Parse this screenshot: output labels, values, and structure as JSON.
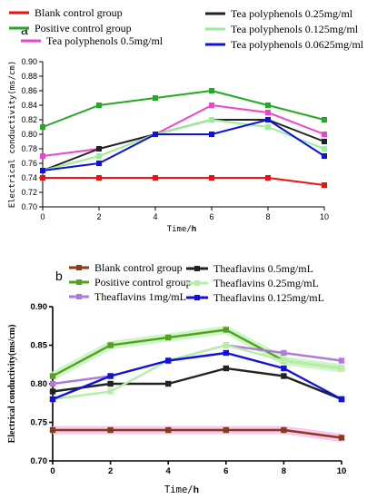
{
  "chart_data": [
    {
      "type": "line",
      "panel_label": "a",
      "xlabel_main": "Time/",
      "xlabel_unit": "h",
      "ylabel": "Electrical conductivity(ms/cm)",
      "x": [
        0,
        2,
        4,
        6,
        8,
        10
      ],
      "x_ticks": [
        "0",
        "2",
        "4",
        "6",
        "8",
        "10"
      ],
      "y_ticks": [
        "0.70",
        "0.72",
        "0.74",
        "0.76",
        "0.78",
        "0.80",
        "0.82",
        "0.84",
        "0.86",
        "0.88",
        "0.90"
      ],
      "ylim": [
        0.7,
        0.9
      ],
      "xlim": [
        0,
        10
      ],
      "grid": false,
      "legend_position": "top",
      "series": [
        {
          "name": "Blank control group",
          "color": "#ee1111",
          "values": [
            0.74,
            0.74,
            0.74,
            0.74,
            0.74,
            0.73
          ]
        },
        {
          "name": "Positive control group",
          "color": "#22aa22",
          "values": [
            0.81,
            0.84,
            0.85,
            0.86,
            0.84,
            0.82
          ]
        },
        {
          "name": "Tea polyphenols 0.5mg/ml",
          "color": "#ee44cc",
          "values": [
            0.77,
            0.78,
            0.8,
            0.84,
            0.83,
            0.8
          ]
        },
        {
          "name": "Tea polyphenols 0.25mg/ml",
          "color": "#222222",
          "values": [
            0.75,
            0.78,
            0.8,
            0.82,
            0.82,
            0.79
          ]
        },
        {
          "name": "Tea polyphenols 0.125mg/ml",
          "color": "#99ee99",
          "values": [
            0.75,
            0.77,
            0.8,
            0.82,
            0.81,
            0.78
          ]
        },
        {
          "name": "Tea polyphenols 0.0625mg/ml",
          "color": "#1111dd",
          "values": [
            0.75,
            0.76,
            0.8,
            0.8,
            0.82,
            0.77
          ]
        }
      ]
    },
    {
      "type": "line",
      "panel_label": "b",
      "xlabel_main": "Time/",
      "xlabel_unit": "h",
      "ylabel": "Electrical conductivity(ms/cm)",
      "x": [
        0,
        2,
        4,
        6,
        8,
        10
      ],
      "x_ticks": [
        "0",
        "2",
        "4",
        "6",
        "8",
        "10"
      ],
      "y_ticks": [
        "0.70",
        "0.75",
        "0.80",
        "0.85",
        "0.90"
      ],
      "ylim": [
        0.7,
        0.9
      ],
      "xlim": [
        0,
        10
      ],
      "grid": false,
      "legend_position": "top",
      "series": [
        {
          "name": "Blank control group",
          "color": "#8b3a1a",
          "values": [
            0.74,
            0.74,
            0.74,
            0.74,
            0.74,
            0.73
          ]
        },
        {
          "name": "Positive control group",
          "color": "#55a020",
          "values": [
            0.81,
            0.85,
            0.86,
            0.87,
            0.83,
            0.82
          ]
        },
        {
          "name": "Theaflavins  1mg/mL",
          "color": "#b07ad8",
          "values": [
            0.8,
            0.81,
            0.83,
            0.85,
            0.84,
            0.83
          ]
        },
        {
          "name": "Theaflavins  0.5mg/mL",
          "color": "#222222",
          "values": [
            0.79,
            0.8,
            0.8,
            0.82,
            0.81,
            0.78
          ]
        },
        {
          "name": "Theaflavins  0.25mg/mL",
          "color": "#b8eea8",
          "values": [
            0.78,
            0.79,
            0.83,
            0.85,
            0.83,
            0.82
          ]
        },
        {
          "name": "Theaflavins  0.125mg/mL",
          "color": "#1111dd",
          "values": [
            0.78,
            0.81,
            0.83,
            0.84,
            0.82,
            0.78
          ]
        }
      ]
    }
  ]
}
